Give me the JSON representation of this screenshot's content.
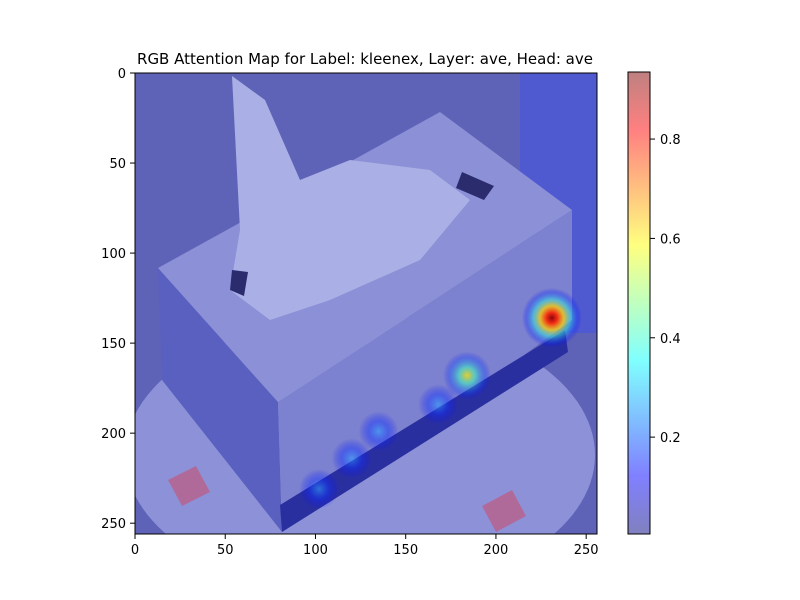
{
  "figure": {
    "title": "RGB Attention Map for Label: kleenex, Layer: ave, Head: ave"
  },
  "chart_data": [
    {
      "type": "heatmap",
      "title": "RGB Attention Map for Label: kleenex, Layer: ave, Head: ave",
      "xlabel": "",
      "ylabel": "",
      "xlim": [
        0,
        256
      ],
      "ylim": [
        256,
        0
      ],
      "x_ticks": [
        0,
        50,
        100,
        150,
        200,
        250
      ],
      "y_ticks": [
        0,
        50,
        100,
        150,
        200,
        250
      ],
      "background_image": "tissue-box-photo",
      "hotspots": [
        {
          "x": 231,
          "y": 136,
          "value": 0.93
        },
        {
          "x": 184,
          "y": 168,
          "value": 0.55
        },
        {
          "x": 168,
          "y": 184,
          "value": 0.25
        },
        {
          "x": 135,
          "y": 199,
          "value": 0.3
        },
        {
          "x": 120,
          "y": 214,
          "value": 0.22
        },
        {
          "x": 102,
          "y": 231,
          "value": 0.27
        }
      ]
    },
    {
      "type": "colorbar",
      "range": [
        0.005,
        0.935
      ],
      "ticks": [
        0.2,
        0.4,
        0.6,
        0.8
      ],
      "tick_labels": [
        "0.2",
        "0.4",
        "0.6",
        "0.8"
      ],
      "colormap": "jet",
      "alpha": 0.5
    }
  ]
}
